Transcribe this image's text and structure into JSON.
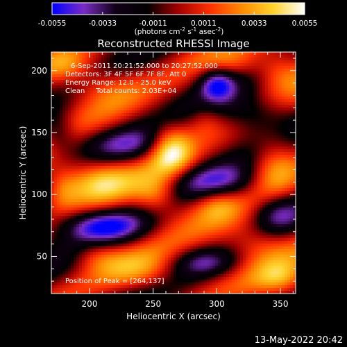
{
  "chart_data": {
    "type": "heatmap",
    "title": "Reconstructed RHESSI Image",
    "xlabel": "Heliocentric X (arcsec)",
    "ylabel": "Heliocentric Y (arcsec)",
    "xlim": [
      170,
      362
    ],
    "ylim": [
      20,
      215
    ],
    "x_ticks": [
      200,
      250,
      300,
      350
    ],
    "y_ticks": [
      50,
      100,
      150,
      200
    ],
    "colorbar": {
      "range": [
        -0.0055,
        0.0055
      ],
      "ticks": [
        "-0.0055",
        "-0.0033",
        "-0.0011",
        "0.0011",
        "0.0033",
        "0.0055"
      ],
      "units_prefix": "(photons cm",
      "units_sup1": "-2",
      "units_mid1": " s",
      "units_sup2": "-1",
      "units_mid2": " asec",
      "units_sup3": "-2",
      "units_suffix": ")",
      "colormap": [
        "#0000ff",
        "#7a2cc4",
        "#120018",
        "#000000",
        "#a40000",
        "#ff3000",
        "#ff8a00",
        "#ffd22a",
        "#ffffff"
      ]
    },
    "info_lines": [
      "6-Sep-2011 20:21:52.000 to 20:27:52.000",
      "Detectors: 3F 4F 5F 6F 7F 8F, Att 0",
      "Energy Range: 12.0 - 25.0 keV",
      "Clean     Total counts: 2.03E+04"
    ],
    "peak_label": "Position of Peak = [264,137]",
    "peak": {
      "x": 264,
      "y": 137,
      "value": 0.0055
    },
    "sources": [
      {
        "x": 264,
        "y": 137,
        "sx": 12,
        "sy": 14,
        "a": 0.0052
      },
      {
        "x": 290,
        "y": 162,
        "sx": 10,
        "sy": 10,
        "a": 0.0015
      },
      {
        "x": 210,
        "y": 188,
        "sx": 22,
        "sy": 14,
        "a": 0.0026
      },
      {
        "x": 180,
        "y": 205,
        "sx": 14,
        "sy": 10,
        "a": 0.0022
      },
      {
        "x": 310,
        "y": 205,
        "sx": 18,
        "sy": 8,
        "a": 0.0018
      },
      {
        "x": 350,
        "y": 200,
        "sx": 14,
        "sy": 12,
        "a": 0.0024
      },
      {
        "x": 345,
        "y": 125,
        "sx": 14,
        "sy": 22,
        "a": 0.0032
      },
      {
        "x": 205,
        "y": 112,
        "sx": 20,
        "sy": 12,
        "a": 0.0033
      },
      {
        "x": 252,
        "y": 100,
        "sx": 12,
        "sy": 12,
        "a": 0.0028
      },
      {
        "x": 178,
        "y": 105,
        "sx": 10,
        "sy": 12,
        "a": 0.0022
      },
      {
        "x": 300,
        "y": 92,
        "sx": 12,
        "sy": 10,
        "a": 0.0018
      },
      {
        "x": 205,
        "y": 52,
        "sx": 14,
        "sy": 10,
        "a": 0.0022
      },
      {
        "x": 240,
        "y": 38,
        "sx": 22,
        "sy": 12,
        "a": 0.0028
      },
      {
        "x": 350,
        "y": 32,
        "sx": 14,
        "sy": 10,
        "a": 0.0026
      },
      {
        "x": 330,
        "y": 62,
        "sx": 18,
        "sy": 12,
        "a": 0.002
      },
      {
        "x": 300,
        "y": 190,
        "sx": 10,
        "sy": 10,
        "a": -0.004
      },
      {
        "x": 208,
        "y": 75,
        "sx": 26,
        "sy": 10,
        "a": -0.0048
      },
      {
        "x": 300,
        "y": 110,
        "sx": 26,
        "sy": 10,
        "a": -0.0034
      },
      {
        "x": 230,
        "y": 140,
        "sx": 30,
        "sy": 10,
        "a": -0.003
      },
      {
        "x": 330,
        "y": 165,
        "sx": 20,
        "sy": 12,
        "a": -0.003
      },
      {
        "x": 348,
        "y": 85,
        "sx": 14,
        "sy": 12,
        "a": -0.0034
      },
      {
        "x": 290,
        "y": 45,
        "sx": 18,
        "sy": 8,
        "a": -0.0026
      },
      {
        "x": 175,
        "y": 150,
        "sx": 10,
        "sy": 12,
        "a": -0.0026
      }
    ]
  },
  "footer": {
    "timestamp": "13-May-2022 20:42"
  }
}
